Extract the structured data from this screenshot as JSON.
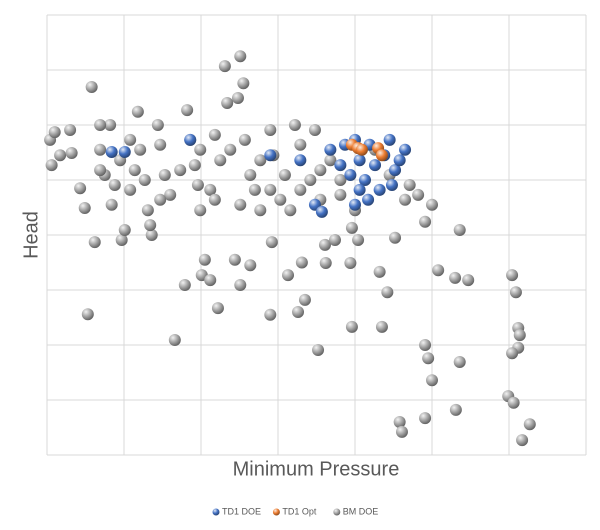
{
  "chart_data": {
    "type": "scatter",
    "x_label": "Minimum Pressure",
    "y_label": "Head",
    "xlim": [
      0,
      7
    ],
    "ylim": [
      0,
      8
    ],
    "xticks": [
      0,
      1,
      2,
      3,
      4,
      5,
      6,
      7
    ],
    "yticks": [
      0,
      1,
      2,
      3,
      4,
      5,
      6,
      7,
      8
    ],
    "tick_labels": false,
    "grid": true,
    "legend": "bottom",
    "series": [
      {
        "name": "BM DOE",
        "color": "#a6a6a6",
        "x": [
          0.58,
          0.04,
          0.1,
          0.3,
          0.17,
          0.06,
          0.32,
          0.43,
          0.49,
          0.62,
          0.53,
          0.69,
          0.82,
          0.75,
          0.88,
          0.84,
          0.97,
          1.01,
          1.18,
          1.21,
          1.14,
          1.08,
          1.31,
          1.36,
          1.44,
          1.47,
          1.53,
          1.6,
          1.66,
          1.79,
          1.82,
          1.86,
          1.92,
          1.96,
          1.99,
          2.05,
          2.01,
          2.12,
          2.18,
          2.25,
          2.22,
          2.31,
          2.51,
          2.55,
          2.48,
          2.34,
          2.44,
          2.51,
          2.64,
          2.57,
          2.64,
          2.77,
          2.7,
          2.9,
          2.94,
          2.92,
          2.9,
          3.13,
          3.16,
          3.22,
          3.29,
          3.31,
          3.26,
          3.35,
          3.42,
          3.48,
          3.52,
          3.61,
          3.62,
          3.74,
          3.81,
          3.94,
          3.96,
          3.96,
          4.04,
          4.32,
          4.35,
          4.42,
          4.52,
          4.58,
          4.61,
          4.65,
          4.71,
          4.82,
          4.91,
          4.91,
          4.95,
          4.91,
          5.0,
          5.0,
          5.08,
          5.3,
          5.31,
          5.36,
          5.36,
          5.47,
          6.04,
          6.09,
          6.12,
          6.14,
          6.12,
          6.04,
          5.99,
          6.06,
          6.27,
          6.17,
          0.69,
          0.95,
          1.27,
          1.73,
          2.12,
          2.38,
          2.77,
          3.09,
          3.29,
          3.55,
          3.68,
          3.81,
          4.0,
          4.26,
          4.45,
          1.99,
          2.18,
          2.51,
          2.9,
          3.03,
          1.47,
          1.34,
          3.55,
          0.69,
          1.08
        ],
        "values": [
          6.69,
          5.73,
          5.87,
          5.91,
          5.45,
          5.27,
          5.49,
          4.85,
          4.49,
          3.87,
          2.56,
          5.55,
          6.0,
          5.09,
          4.91,
          4.55,
          3.91,
          4.09,
          6.24,
          5.55,
          5.18,
          4.82,
          4.45,
          4.0,
          6.0,
          5.64,
          5.09,
          4.73,
          2.09,
          3.09,
          6.27,
          5.73,
          5.27,
          4.91,
          4.45,
          3.55,
          3.27,
          3.18,
          5.82,
          5.36,
          2.67,
          7.07,
          7.25,
          6.76,
          6.49,
          6.4,
          3.55,
          3.09,
          3.45,
          5.73,
          5.09,
          4.45,
          4.82,
          5.91,
          5.45,
          3.87,
          2.55,
          3.27,
          4.45,
          6.0,
          5.64,
          3.5,
          2.6,
          2.82,
          5.0,
          5.91,
          1.91,
          3.82,
          3.49,
          3.91,
          4.73,
          3.49,
          4.13,
          2.33,
          3.91,
          3.33,
          2.33,
          2.96,
          3.95,
          0.6,
          0.42,
          4.64,
          4.91,
          4.73,
          4.24,
          2.0,
          1.76,
          0.67,
          1.36,
          4.55,
          3.36,
          3.22,
          0.82,
          4.09,
          1.69,
          3.18,
          3.27,
          2.96,
          2.31,
          2.18,
          1.95,
          1.85,
          1.07,
          0.95,
          0.56,
          0.27,
          5.18,
          5.36,
          5.0,
          5.18,
          4.82,
          5.55,
          5.36,
          5.09,
          4.82,
          5.18,
          5.36,
          5.0,
          4.45,
          5.55,
          5.09,
          5.55,
          4.64,
          4.55,
          4.82,
          4.64,
          4.64,
          4.18,
          4.64,
          6.0,
          5.73
        ]
      },
      {
        "name": "TD1 DOE",
        "color": "#4472c4",
        "x": [
          0.84,
          1.01,
          1.86,
          2.9,
          3.29,
          3.48,
          3.57,
          3.68,
          3.81,
          3.87,
          3.94,
          4.0,
          4.0,
          4.06,
          4.13,
          4.17,
          4.19,
          4.26,
          4.32,
          4.38,
          4.45,
          4.52,
          4.58,
          4.65,
          4.48,
          4.06
        ],
        "values": [
          5.51,
          5.51,
          5.73,
          5.45,
          5.36,
          4.55,
          4.42,
          5.55,
          5.27,
          5.64,
          5.09,
          5.73,
          4.55,
          5.36,
          5.0,
          4.64,
          5.64,
          5.27,
          4.82,
          5.45,
          5.73,
          5.18,
          5.36,
          5.55,
          4.91,
          4.82
        ]
      },
      {
        "name": "TD1 Opt",
        "color": "#ed7d31",
        "x": [
          3.96,
          4.04,
          4.09,
          4.3,
          4.35
        ],
        "values": [
          5.64,
          5.58,
          5.55,
          5.58,
          5.45
        ]
      }
    ],
    "legend_order": [
      "TD1 DOE",
      "TD1 Opt",
      "BM DOE"
    ]
  }
}
